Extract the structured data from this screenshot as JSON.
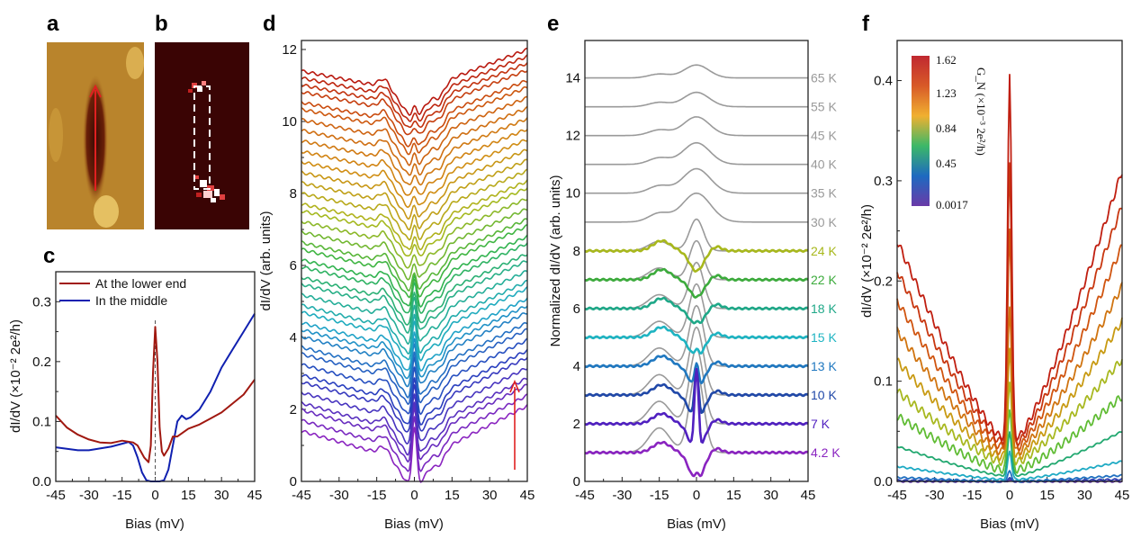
{
  "panels": {
    "a": "a",
    "b": "b",
    "c": "c",
    "d": "d",
    "e": "e",
    "f": "f"
  },
  "colors": {
    "arrow": "#e02020",
    "dashed_box": "#ffffff",
    "gray_curve": "#9a9a9a"
  },
  "chart_data": [
    {
      "id": "c",
      "type": "line",
      "xlabel": "Bias (mV)",
      "ylabel": "dI/dV (×10⁻² 2e²/h)",
      "xlim": [
        -45,
        45
      ],
      "ylim": [
        0,
        0.35
      ],
      "xticks": [
        -45,
        -30,
        -15,
        0,
        15,
        30,
        45
      ],
      "yticks": [
        0.0,
        0.1,
        0.2,
        0.3
      ],
      "legend": "top-left",
      "series": [
        {
          "name": "At the lower end",
          "color": "#a01810",
          "points": [
            [
              -45,
              0.11
            ],
            [
              -40,
              0.09
            ],
            [
              -35,
              0.078
            ],
            [
              -30,
              0.07
            ],
            [
              -25,
              0.065
            ],
            [
              -20,
              0.064
            ],
            [
              -15,
              0.068
            ],
            [
              -10,
              0.065
            ],
            [
              -8,
              0.06
            ],
            [
              -5,
              0.04
            ],
            [
              -3,
              0.032
            ],
            [
              -2,
              0.06
            ],
            [
              -1,
              0.18
            ],
            [
              0,
              0.258
            ],
            [
              1,
              0.2
            ],
            [
              2,
              0.09
            ],
            [
              3,
              0.05
            ],
            [
              4,
              0.043
            ],
            [
              6,
              0.055
            ],
            [
              8,
              0.075
            ],
            [
              10,
              0.075
            ],
            [
              15,
              0.088
            ],
            [
              20,
              0.095
            ],
            [
              25,
              0.105
            ],
            [
              30,
              0.115
            ],
            [
              35,
              0.13
            ],
            [
              40,
              0.145
            ],
            [
              45,
              0.17
            ]
          ]
        },
        {
          "name": "In the middle",
          "color": "#1020b0",
          "points": [
            [
              -45,
              0.057
            ],
            [
              -35,
              0.052
            ],
            [
              -30,
              0.052
            ],
            [
              -20,
              0.058
            ],
            [
              -15,
              0.063
            ],
            [
              -12,
              0.066
            ],
            [
              -10,
              0.06
            ],
            [
              -8,
              0.04
            ],
            [
              -6,
              0.015
            ],
            [
              -4,
              0.002
            ],
            [
              -2,
              0
            ],
            [
              0,
              0
            ],
            [
              2,
              0
            ],
            [
              4,
              0.002
            ],
            [
              6,
              0.02
            ],
            [
              8,
              0.06
            ],
            [
              10,
              0.1
            ],
            [
              12,
              0.11
            ],
            [
              14,
              0.104
            ],
            [
              16,
              0.107
            ],
            [
              20,
              0.12
            ],
            [
              25,
              0.15
            ],
            [
              30,
              0.19
            ],
            [
              35,
              0.22
            ],
            [
              40,
              0.25
            ],
            [
              45,
              0.28
            ]
          ]
        }
      ]
    },
    {
      "id": "d",
      "type": "line",
      "xlabel": "Bias (mV)",
      "ylabel": "dI/dV (arb. units)",
      "xlim": [
        -45,
        45
      ],
      "ylim": [
        0,
        12.25
      ],
      "xticks": [
        -45,
        -30,
        -15,
        0,
        15,
        30,
        45
      ],
      "yticks": [
        0,
        2,
        4,
        6,
        8,
        10,
        12
      ],
      "series_offsets": [
        0.5,
        0.8,
        1.1,
        1.3,
        1.6,
        1.9,
        2.1,
        2.4,
        2.7,
        2.9,
        3.2,
        3.4,
        3.6,
        3.9,
        4.1,
        4.4,
        4.7,
        4.9,
        5.2,
        5.4,
        5.7,
        5.9,
        6.2,
        6.5,
        6.8,
        7.0,
        7.3,
        7.6,
        7.9,
        8.2,
        8.5,
        8.8,
        9.1,
        9.4,
        9.7,
        9.9,
        10.2,
        10.4,
        10.6,
        10.8
      ]
    },
    {
      "id": "e",
      "type": "line",
      "xlabel": "Bias (mV)",
      "ylabel": "Normalized dI/dV (arb. units)",
      "xlim": [
        -45,
        45
      ],
      "ylim": [
        0,
        15.3
      ],
      "xticks": [
        -45,
        -30,
        -15,
        0,
        15,
        30,
        45
      ],
      "yticks": [
        0,
        2,
        4,
        6,
        8,
        10,
        12,
        14
      ],
      "series": [
        {
          "name": "65 K",
          "offset": 14,
          "color": "#9a9a9a",
          "peak": 0.45,
          "dip": 0
        },
        {
          "name": "55 K",
          "offset": 13,
          "color": "#9a9a9a",
          "peak": 0.5,
          "dip": 0
        },
        {
          "name": "45 K",
          "offset": 12,
          "color": "#9a9a9a",
          "peak": 0.65,
          "dip": 0
        },
        {
          "name": "40 K",
          "offset": 11,
          "color": "#9a9a9a",
          "peak": 0.75,
          "dip": 0
        },
        {
          "name": "35 K",
          "offset": 10,
          "color": "#9a9a9a",
          "peak": 0.85,
          "dip": 0
        },
        {
          "name": "30 K",
          "offset": 9,
          "color": "#9a9a9a",
          "peak": 1.0,
          "dip": 0
        },
        {
          "name": "24 K",
          "offset": 8,
          "color": "#a8b81c",
          "peak": 0,
          "dip": 0.7
        },
        {
          "name": "22 K",
          "offset": 7,
          "color": "#3cab3c",
          "peak": 0,
          "dip": 0.6
        },
        {
          "name": "18 K",
          "offset": 6,
          "color": "#1fa888",
          "peak": 0.15,
          "dip": 0.6
        },
        {
          "name": "15 K",
          "offset": 5,
          "color": "#1eb4c2",
          "peak": 0.3,
          "dip": 0.7
        },
        {
          "name": "13 K",
          "offset": 4,
          "color": "#2078c0",
          "peak": 0.9,
          "dip": 0.8
        },
        {
          "name": "10 K",
          "offset": 3,
          "color": "#2048a8",
          "peak": 1.8,
          "dip": 0.9
        },
        {
          "name": "7 K",
          "offset": 2,
          "color": "#5020c0",
          "peak": 2.9,
          "dip": 1.0
        },
        {
          "name": "4.2 K",
          "offset": 1,
          "color": "#8a24c0",
          "peak": 0.3,
          "dip": 1.0
        }
      ]
    },
    {
      "id": "f",
      "type": "line",
      "xlabel": "Bias (mV)",
      "ylabel": "dI/dV (×10⁻² 2e²/h)",
      "xlim": [
        -45,
        45
      ],
      "ylim": [
        0,
        0.44
      ],
      "xticks": [
        -45,
        -30,
        -15,
        0,
        15,
        30,
        45
      ],
      "yticks": [
        0.0,
        0.1,
        0.2,
        0.3,
        0.4
      ],
      "colorbar": {
        "title": "G_N (×10⁻³ 2e²/h)",
        "labels": [
          "1.62",
          "1.23",
          "0.84",
          "0.45",
          "0.0017"
        ]
      },
      "series": [
        {
          "left": 0.24,
          "right": 0.31,
          "min": 0.045,
          "peak": 0.41,
          "color": "#c01e10"
        },
        {
          "left": 0.21,
          "right": 0.275,
          "min": 0.04,
          "peak": 0.32,
          "color": "#c8360f"
        },
        {
          "left": 0.18,
          "right": 0.235,
          "min": 0.035,
          "peak": 0.25,
          "color": "#d0540f"
        },
        {
          "left": 0.15,
          "right": 0.195,
          "min": 0.03,
          "peak": 0.17,
          "color": "#d07410"
        },
        {
          "left": 0.12,
          "right": 0.16,
          "min": 0.025,
          "peak": 0.13,
          "color": "#c89a12"
        },
        {
          "left": 0.09,
          "right": 0.122,
          "min": 0.02,
          "peak": 0.1,
          "color": "#a8b820"
        },
        {
          "left": 0.065,
          "right": 0.085,
          "min": 0.012,
          "peak": 0.075,
          "color": "#60bc34"
        },
        {
          "left": 0.035,
          "right": 0.05,
          "min": 0.006,
          "peak": 0.05,
          "color": "#22a870"
        },
        {
          "left": 0.015,
          "right": 0.02,
          "min": 0.002,
          "peak": 0.03,
          "color": "#1eaac4"
        },
        {
          "left": 0.004,
          "right": 0.006,
          "min": 0.0,
          "peak": 0.01,
          "color": "#2070c0"
        },
        {
          "left": 0.001,
          "right": 0.002,
          "min": 0.0,
          "peak": 0.003,
          "color": "#3040b0"
        },
        {
          "left": 0.0,
          "right": 0.0,
          "min": 0.0,
          "peak": 0.001,
          "color": "#6030b0"
        }
      ]
    }
  ]
}
